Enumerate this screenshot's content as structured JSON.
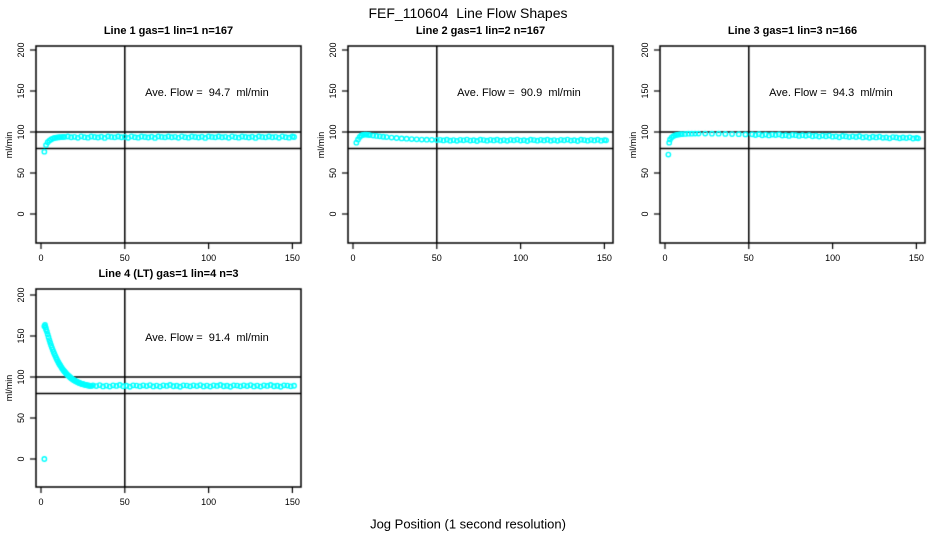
{
  "figure": {
    "title": "FEF_110604  Line Flow Shapes",
    "xlabel": "Jog Position (1 second resolution)",
    "background": "#ffffff",
    "line_color": "#000000",
    "marker_color": "#00ffff"
  },
  "chart_data": [
    {
      "type": "scatter",
      "title": "Line 1 gas=1 lin=1 n=167",
      "n": 167,
      "ave_flow_ml_min": 94.7,
      "annotation": "Ave. Flow =  94.7  ml/min",
      "ylabel": "ml/min",
      "yticks": [
        0,
        50,
        100,
        150,
        200
      ],
      "xticks": [
        0,
        50,
        100,
        150
      ],
      "xlim": [
        -3,
        155
      ],
      "ylim": [
        -35,
        205
      ],
      "hlines": [
        100,
        80
      ],
      "vline": 50,
      "grid": false,
      "points": [
        2,
        76,
        3,
        84,
        4,
        87.5,
        5,
        89.5,
        6,
        91,
        7,
        92,
        8,
        92.7,
        9,
        93.1,
        10,
        93.4,
        11,
        93.6,
        12,
        93.8,
        13,
        93.9,
        14,
        94,
        16,
        94.5,
        18,
        93.6,
        20,
        94.1,
        22,
        92.9,
        24,
        94.7,
        26,
        93.7,
        28,
        93.1,
        30,
        94.5,
        32,
        93.9,
        34,
        93.3,
        36,
        94.3,
        38,
        92.8,
        40,
        94.6,
        42,
        94.0,
        44,
        93.5,
        46,
        94.5,
        48,
        93.6,
        50,
        94.1,
        52,
        92.9,
        54,
        94.7,
        56,
        93.7,
        58,
        93.1,
        60,
        94.5,
        62,
        93.9,
        64,
        93.3,
        66,
        94.3,
        68,
        92.8,
        70,
        94.6,
        72,
        94.0,
        74,
        93.5,
        76,
        94.5,
        78,
        93.6,
        80,
        94.1,
        82,
        92.9,
        84,
        94.7,
        86,
        93.7,
        88,
        93.1,
        90,
        94.5,
        92,
        93.9,
        94,
        93.3,
        96,
        94.3,
        98,
        92.8,
        100,
        94.6,
        102,
        94.0,
        104,
        93.5,
        106,
        94.5,
        108,
        93.6,
        110,
        94.1,
        112,
        92.9,
        114,
        94.7,
        116,
        93.7,
        118,
        93.1,
        120,
        94.5,
        122,
        93.9,
        124,
        93.3,
        126,
        94.3,
        128,
        92.8,
        130,
        94.6,
        132,
        94.0,
        134,
        93.5,
        136,
        94.5,
        138,
        93.6,
        140,
        94.1,
        142,
        92.9,
        144,
        94.7,
        146,
        93.7,
        148,
        93.1,
        150,
        94.5,
        151,
        93.9
      ]
    },
    {
      "type": "scatter",
      "title": "Line 2 gas=1 lin=2 n=167",
      "n": 167,
      "ave_flow_ml_min": 90.9,
      "annotation": "Ave. Flow =  90.9  ml/min",
      "ylabel": "ml/min",
      "yticks": [
        0,
        50,
        100,
        150,
        200
      ],
      "xticks": [
        0,
        50,
        100,
        150
      ],
      "xlim": [
        -3,
        155
      ],
      "ylim": [
        -35,
        205
      ],
      "hlines": [
        100,
        80
      ],
      "vline": 50,
      "grid": false,
      "points": [
        2,
        87,
        3,
        91,
        4,
        94,
        5,
        95.8,
        6,
        96.6,
        7,
        96.9,
        8,
        96.8,
        9,
        96.5,
        10,
        96.2,
        12,
        95.7,
        14,
        95.2,
        16,
        94.7,
        18,
        94.2,
        20,
        93.8,
        23,
        93.2,
        26,
        92.7,
        29,
        92.2,
        32,
        91.8,
        35,
        91.4,
        38,
        91.1,
        41,
        90.8,
        44,
        90.6,
        47,
        90.4,
        50,
        90.2,
        52,
        90.4,
        54,
        89.7,
        56,
        90.7,
        58,
        89.4,
        60,
        90.2,
        62,
        89.2,
        64,
        90.5,
        66,
        89.8,
        68,
        90.8,
        70,
        89.5,
        72,
        90.0,
        74,
        89.0,
        76,
        90.6,
        78,
        90.2,
        80,
        89.4,
        82,
        90.4,
        84,
        89.7,
        86,
        90.7,
        88,
        89.4,
        90,
        90.2,
        92,
        89.2,
        94,
        90.5,
        96,
        89.8,
        98,
        90.8,
        100,
        89.5,
        102,
        90.0,
        104,
        89.0,
        106,
        90.6,
        108,
        90.2,
        110,
        89.4,
        112,
        90.4,
        114,
        89.7,
        116,
        90.7,
        118,
        89.4,
        120,
        90.2,
        122,
        89.2,
        124,
        90.5,
        126,
        89.8,
        128,
        90.8,
        130,
        89.5,
        132,
        90.0,
        134,
        89.0,
        136,
        90.6,
        138,
        90.2,
        140,
        89.4,
        142,
        90.4,
        144,
        89.7,
        146,
        90.7,
        148,
        89.4,
        150,
        90.2,
        151,
        89.8
      ]
    },
    {
      "type": "scatter",
      "title": "Line 3 gas=1 lin=3 n=166",
      "n": 166,
      "ave_flow_ml_min": 94.3,
      "annotation": "Ave. Flow =  94.3  ml/min",
      "ylabel": "ml/min",
      "yticks": [
        0,
        50,
        100,
        150,
        200
      ],
      "xticks": [
        0,
        50,
        100,
        150
      ],
      "xlim": [
        -3,
        155
      ],
      "ylim": [
        -35,
        205
      ],
      "hlines": [
        100,
        80
      ],
      "vline": 50,
      "grid": false,
      "points": [
        2,
        72.5,
        2.5,
        87,
        3,
        91,
        4,
        93.5,
        5,
        95,
        6,
        95.9,
        7,
        96.5,
        8,
        96.9,
        9,
        97.2,
        10,
        97.4,
        12,
        97.7,
        14,
        97.9,
        16,
        98,
        18,
        98.1,
        20,
        98.1,
        24,
        98.1,
        28,
        98,
        32,
        97.9,
        36,
        97.7,
        40,
        97.5,
        44,
        97.3,
        48,
        97.1,
        52,
        97.2,
        54,
        96.2,
        56,
        97.3,
        58,
        95.9,
        60,
        96.9,
        62,
        95.8,
        64,
        96.9,
        66,
        96.2,
        68,
        97.0,
        70,
        95.7,
        72,
        96.1,
        74,
        95.2,
        76,
        96.6,
        78,
        96.1,
        80,
        95.2,
        82,
        96.1,
        84,
        95.3,
        86,
        96.2,
        88,
        94.8,
        90,
        95.5,
        92,
        94.4,
        94,
        95.6,
        96,
        94.8,
        98,
        95.7,
        100,
        94.3,
        102,
        94.7,
        104,
        93.6,
        106,
        95.1,
        108,
        94.6,
        110,
        93.8,
        112,
        94.7,
        114,
        93.9,
        116,
        94.8,
        118,
        93.4,
        120,
        94.1,
        122,
        93.0,
        124,
        94.2,
        126,
        93.4,
        128,
        94.3,
        130,
        92.9,
        132,
        93.3,
        134,
        92.3,
        136,
        93.8,
        138,
        93.3,
        140,
        92.4,
        142,
        93.3,
        144,
        92.6,
        146,
        93.5,
        148,
        92.1,
        150,
        92.8,
        151,
        92.3
      ]
    },
    {
      "type": "scatter",
      "title": "Line 4 (LT) gas=1 lin=4 n=3",
      "n": 3,
      "ave_flow_ml_min": 91.4,
      "annotation": "Ave. Flow =  91.4  ml/min",
      "ylabel": "ml/min",
      "yticks": [
        0,
        50,
        100,
        150,
        200
      ],
      "xticks": [
        0,
        50,
        100,
        150
      ],
      "xlim": [
        -3,
        155
      ],
      "ylim": [
        -35,
        205
      ],
      "hlines": [
        100,
        80
      ],
      "vline": 50,
      "grid": false,
      "points": [
        2,
        0,
        2,
        162,
        2.4,
        163.5,
        2.8,
        160.5,
        3,
        158,
        3.5,
        155.5,
        4,
        152,
        4.5,
        148.5,
        5,
        145,
        5.5,
        141.8,
        6,
        138.8,
        6.5,
        135.9,
        7,
        133.2,
        7.5,
        130.6,
        8,
        128.1,
        8.5,
        125.8,
        9,
        123.5,
        9.5,
        121.4,
        10,
        119.4,
        10.5,
        117.5,
        11,
        115.7,
        11.5,
        114,
        12,
        112.4,
        12.5,
        110.8,
        13,
        109.4,
        13.5,
        108,
        14,
        106.7,
        14.5,
        105.5,
        15,
        104.3,
        15.5,
        103.2,
        16,
        102.2,
        16.5,
        101.2,
        17,
        100.3,
        17.5,
        99.4,
        18,
        98.6,
        18.5,
        97.8,
        19,
        97.1,
        19.5,
        96.4,
        20,
        95.8,
        20.5,
        95.2,
        21,
        94.6,
        21.5,
        94.1,
        22,
        93.6,
        22.5,
        93.1,
        23,
        92.7,
        23.5,
        92.3,
        24,
        91.9,
        24.5,
        91.6,
        25,
        91.2,
        25.5,
        90.9,
        26,
        90.7,
        26.5,
        90.4,
        27,
        90.2,
        27.5,
        89.9,
        28,
        89.7,
        28.5,
        89.6,
        29,
        89.4,
        29.5,
        89.2,
        30,
        89.1,
        31,
        89.8,
        33,
        88.9,
        35,
        90.2,
        37,
        88.5,
        39,
        89.5,
        41,
        88.3,
        43,
        89.9,
        45,
        89.1,
        47,
        90.3,
        49,
        88.7,
        51,
        89.3,
        53,
        88.1,
        55,
        89.9,
        57,
        89.6,
        59,
        88.6,
        61,
        89.8,
        63,
        88.9,
        65,
        90.2,
        67,
        88.5,
        69,
        89.5,
        71,
        88.3,
        73,
        89.9,
        75,
        89.1,
        77,
        90.3,
        79,
        88.7,
        81,
        89.3,
        83,
        88.1,
        85,
        89.9,
        87,
        89.6,
        89,
        88.6,
        91,
        89.8,
        93,
        88.9,
        95,
        90.2,
        97,
        88.5,
        99,
        89.5,
        101,
        88.3,
        103,
        89.9,
        105,
        89.1,
        107,
        90.3,
        109,
        88.7,
        111,
        89.3,
        113,
        88.1,
        115,
        89.9,
        117,
        89.6,
        119,
        88.6,
        121,
        89.8,
        123,
        88.9,
        125,
        90.2,
        127,
        88.5,
        129,
        89.5,
        131,
        88.3,
        133,
        89.9,
        135,
        89.1,
        137,
        90.3,
        139,
        88.7,
        141,
        89.3,
        143,
        88.1,
        145,
        89.9,
        147,
        89.6,
        149,
        88.6,
        151,
        89.3
      ]
    }
  ]
}
